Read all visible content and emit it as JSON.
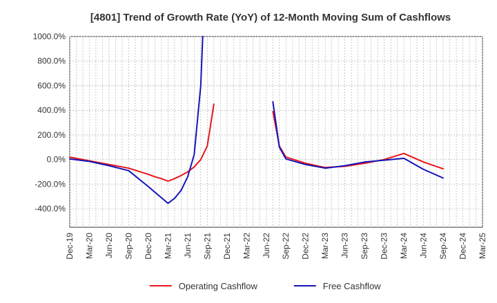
{
  "chart_data": {
    "type": "line",
    "title": "[4801]  Trend of Growth Rate (YoY) of 12-Month Moving Sum of Cashflows",
    "xlabel": "",
    "ylabel": "",
    "ylim": [
      -550,
      1000
    ],
    "y_ticks": [
      1000,
      800,
      600,
      400,
      200,
      0,
      -200,
      -400
    ],
    "y_tick_labels": [
      "1000.0%",
      "800.0%",
      "600.0%",
      "400.0%",
      "200.0%",
      "0.0%",
      "-200.0%",
      "-400.0%"
    ],
    "x_tick_labels": [
      "Dec-19",
      "Mar-20",
      "Jun-20",
      "Sep-20",
      "Dec-20",
      "Mar-21",
      "Jun-21",
      "Sep-21",
      "Dec-21",
      "Mar-22",
      "Jun-22",
      "Sep-22",
      "Dec-22",
      "Mar-23",
      "Jun-23",
      "Sep-23",
      "Dec-23",
      "Mar-24",
      "Jun-24",
      "Sep-24",
      "Dec-24",
      "Mar-25"
    ],
    "grid": true,
    "legend_position": "bottom",
    "series": [
      {
        "name": "Operating Cashflow",
        "color": "#e8141b",
        "points": [
          [
            "2019-12",
            20
          ],
          [
            "2020-03",
            -10
          ],
          [
            "2020-06",
            -40
          ],
          [
            "2020-09",
            -70
          ],
          [
            "2020-12",
            -120
          ],
          [
            "2021-01",
            -140
          ],
          [
            "2021-02",
            -155
          ],
          [
            "2021-03",
            -175
          ],
          [
            "2021-04",
            -155
          ],
          [
            "2021-05",
            -130
          ],
          [
            "2021-06",
            -100
          ],
          [
            "2021-07",
            -60
          ],
          [
            "2021-08",
            0
          ],
          [
            "2021-09",
            110
          ],
          [
            "2021-10",
            450
          ]
        ]
      },
      {
        "name": "Operating Cashflow",
        "color": "#e8141b",
        "points": [
          [
            "2022-07",
            390
          ],
          [
            "2022-08",
            110
          ],
          [
            "2022-09",
            20
          ],
          [
            "2022-12",
            -30
          ],
          [
            "2023-03",
            -65
          ],
          [
            "2023-06",
            -55
          ],
          [
            "2023-09",
            -30
          ],
          [
            "2023-12",
            0
          ],
          [
            "2024-03",
            50
          ],
          [
            "2024-06",
            -20
          ],
          [
            "2024-09",
            -75
          ]
        ]
      },
      {
        "name": "Free Cashflow",
        "color": "#1414b8",
        "points": [
          [
            "2019-12",
            5
          ],
          [
            "2020-03",
            -15
          ],
          [
            "2020-06",
            -50
          ],
          [
            "2020-09",
            -90
          ],
          [
            "2020-12",
            -220
          ],
          [
            "2021-01",
            -265
          ],
          [
            "2021-02",
            -310
          ],
          [
            "2021-03",
            -355
          ],
          [
            "2021-04",
            -315
          ],
          [
            "2021-05",
            -250
          ],
          [
            "2021-06",
            -140
          ],
          [
            "2021-07",
            40
          ],
          [
            "2021-08",
            600
          ],
          [
            "2021-08.3",
            1000
          ]
        ]
      },
      {
        "name": "Free Cashflow",
        "color": "#1414b8",
        "points": [
          [
            "2022-07",
            470
          ],
          [
            "2022-08",
            100
          ],
          [
            "2022-09",
            5
          ],
          [
            "2022-12",
            -40
          ],
          [
            "2023-03",
            -70
          ],
          [
            "2023-06",
            -50
          ],
          [
            "2023-09",
            -20
          ],
          [
            "2023-12",
            -5
          ],
          [
            "2024-03",
            10
          ],
          [
            "2024-06",
            -80
          ],
          [
            "2024-09",
            -150
          ]
        ]
      }
    ],
    "legend": [
      {
        "name": "Operating Cashflow",
        "color": "#e8141b"
      },
      {
        "name": "Free Cashflow",
        "color": "#1414b8"
      }
    ]
  }
}
